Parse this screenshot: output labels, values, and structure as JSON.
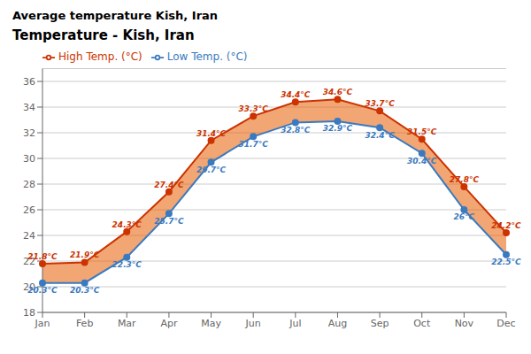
{
  "chart_data": {
    "type": "line",
    "title": "Temperature - Kish, Iran",
    "subtitle": "Average temperature Kish, Iran",
    "categories": [
      "Jan",
      "Feb",
      "Mar",
      "Apr",
      "May",
      "Jun",
      "Jul",
      "Aug",
      "Sep",
      "Oct",
      "Nov",
      "Dec"
    ],
    "color": "#e85c00",
    "series": [
      {
        "name": "Low Temp. (°C)",
        "color": "#3a7abf",
        "marker": "circle",
        "values": [
          20.3,
          20.3,
          22.3,
          25.7,
          29.7,
          31.7,
          32.8,
          32.9,
          32.4,
          30.4,
          26.0,
          22.5
        ],
        "value_labels": [
          "20.3°C",
          "20.3°C",
          "22.3°C",
          "25.7°C",
          "29.7°C",
          "31.7°C",
          "32.8°C",
          "32.9°C",
          "32.4°C",
          "30.4°C",
          "26°C",
          "22.5°C"
        ]
      },
      {
        "name": "High Temp. (°C)",
        "color": "#cc3300",
        "marker": "circle",
        "values": [
          21.8,
          21.9,
          24.3,
          27.4,
          31.4,
          33.3,
          34.4,
          34.6,
          33.7,
          31.5,
          27.8,
          24.2
        ],
        "value_labels": [
          "21.8°C",
          "21.9°C",
          "24.3°C",
          "27.4°C",
          "31.4°C",
          "33.3°C",
          "34.4°C",
          "34.6°C",
          "33.7°C",
          "31.5°C",
          "27.8°C",
          "24.2°C"
        ]
      }
    ],
    "ylim": [
      18,
      37
    ],
    "yticks": [
      18,
      20,
      22,
      24,
      26,
      28,
      30,
      32,
      34,
      36
    ],
    "grid": true,
    "legend": "upper left",
    "data_labels": true
  }
}
